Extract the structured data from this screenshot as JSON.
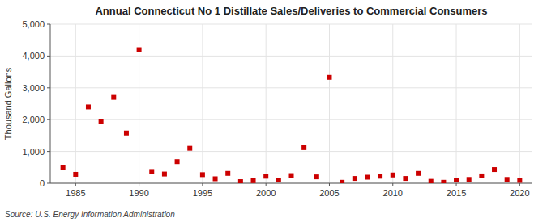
{
  "chart_data": {
    "type": "scatter",
    "title": "Annual Connecticut No 1 Distillate Sales/Deliveries to Commercial Consumers",
    "y_label": "Thousand Gallons",
    "annotations": [
      "Source: U.S. Energy Information Administration"
    ],
    "x": [
      1984,
      1985,
      1986,
      1987,
      1988,
      1989,
      1990,
      1991,
      1992,
      1993,
      1994,
      1995,
      1996,
      1997,
      1998,
      1999,
      2000,
      2001,
      2002,
      2003,
      2004,
      2005,
      2006,
      2007,
      2008,
      2009,
      2010,
      2011,
      2012,
      2013,
      2014,
      2015,
      2016,
      2017,
      2018,
      2019,
      2020
    ],
    "values": [
      490,
      280,
      2400,
      1940,
      2700,
      1580,
      4200,
      370,
      290,
      680,
      1100,
      270,
      140,
      310,
      50,
      80,
      220,
      100,
      240,
      1120,
      200,
      3330,
      30,
      150,
      190,
      220,
      260,
      150,
      310,
      60,
      30,
      100,
      120,
      230,
      430,
      120,
      90
    ],
    "color": "#cc0000",
    "marker": "square",
    "grid": true,
    "xlim": [
      1983,
      2021
    ],
    "ylim": [
      0,
      5000
    ],
    "xticks": [
      1985,
      1990,
      1995,
      2000,
      2005,
      2010,
      2015,
      2020
    ],
    "yticks": [
      0,
      {
        "value": 1000,
        "label": "1,000"
      },
      {
        "value": 2000,
        "label": "2,000"
      },
      {
        "value": 3000,
        "label": "3,000"
      },
      {
        "value": 4000,
        "label": "4,000"
      },
      {
        "value": 5000,
        "label": "5,000"
      }
    ]
  }
}
